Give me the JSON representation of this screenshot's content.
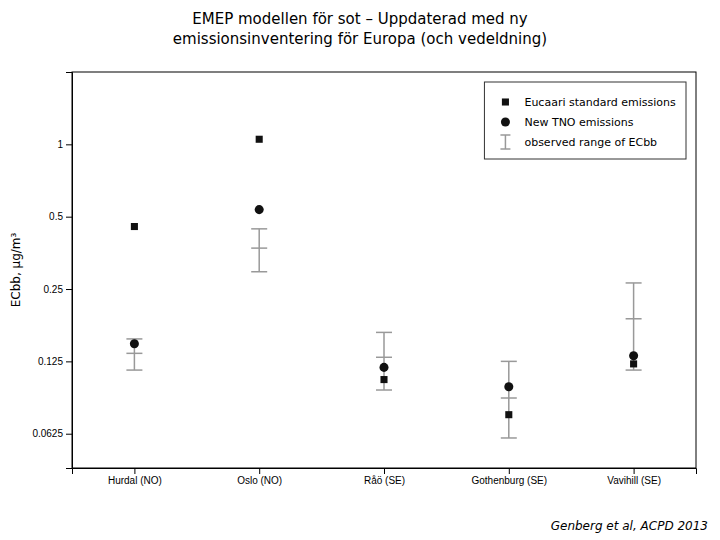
{
  "chart_data": {
    "type": "scatter",
    "title": "EMEP modellen för sot – Uppdaterad med ny",
    "subtitle": "emissionsinventering för Europa (och vedeldning)",
    "y_label": "ECbb, μg/m³",
    "annotations": [
      "Genberg et al, ACPD 2013"
    ],
    "categories": [
      "Hurdal (NO)",
      "Oslo (NO)",
      "Råö (SE)",
      "Gothenburg (SE)",
      "Vavihill (SE)"
    ],
    "series": [
      {
        "name": "Eucaari standard emissions",
        "color": "#111111",
        "marker": "square",
        "values": [
          0.455,
          1.05,
          0.105,
          0.075,
          0.122
        ]
      },
      {
        "name": "New TNO emissions",
        "color": "#111111",
        "marker": "circle",
        "values": [
          0.148,
          0.535,
          0.118,
          0.098,
          0.132
        ]
      },
      {
        "name": "observed range of ECbb",
        "type": "range",
        "color": "#999999",
        "values": [
          0.135,
          0.37,
          0.13,
          0.088,
          0.188
        ],
        "low": [
          0.115,
          0.295,
          0.095,
          0.06,
          0.115
        ],
        "high": [
          0.155,
          0.445,
          0.165,
          0.125,
          0.265
        ]
      }
    ],
    "log": "y",
    "ylim": [
      0.045,
      2.0
    ],
    "yticks": [
      0.0625,
      0.125,
      0.25,
      0.5,
      1
    ],
    "grid": false,
    "legend": "upper right"
  }
}
